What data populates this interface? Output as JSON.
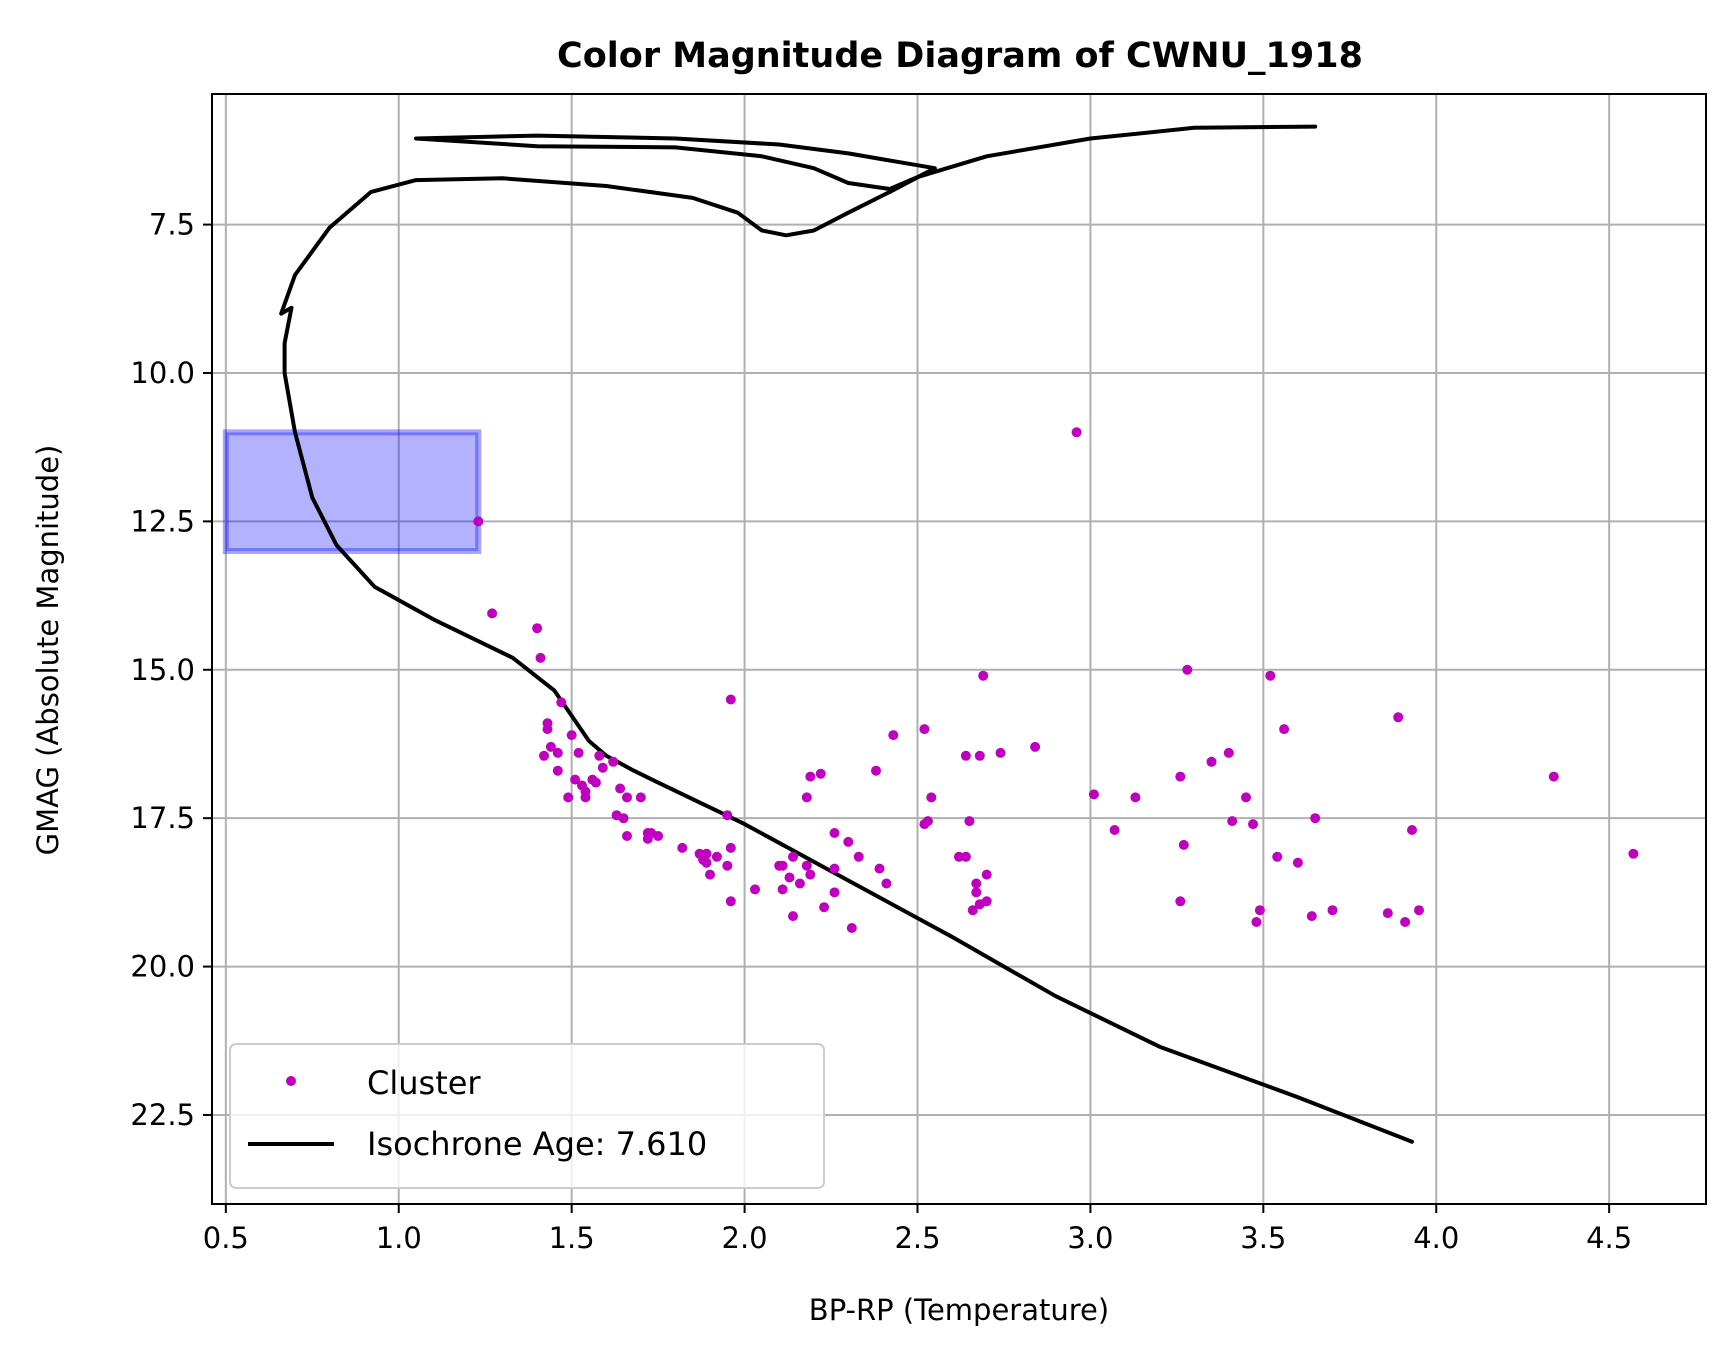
{
  "chart_data": {
    "type": "scatter",
    "title": "Color Magnitude Diagram of CWNU_1918",
    "xlabel": "BP-RP (Temperature)",
    "ylabel": "GMAG (Absolute Magnitude)",
    "xlim": [
      0.46,
      4.78
    ],
    "ylim": [
      24.0,
      5.3
    ],
    "y_inverted": true,
    "grid": true,
    "legend_position": "lower-left",
    "x_ticks": [
      "0.5",
      "1.0",
      "1.5",
      "2.0",
      "2.5",
      "3.0",
      "3.5",
      "4.0",
      "4.5"
    ],
    "y_ticks": [
      "7.5",
      "10.0",
      "12.5",
      "15.0",
      "17.5",
      "20.0",
      "22.5"
    ],
    "colors": {
      "cluster": "#bf00bf",
      "isochrone": "#000000",
      "highlight_fill": "#0000ff",
      "grid": "#b0b0b0"
    },
    "highlight_region": {
      "x": [
        0.5,
        1.23
      ],
      "y": [
        11.0,
        13.0
      ]
    },
    "series": [
      {
        "name": "Cluster",
        "kind": "scatter",
        "points": [
          [
            2.96,
            11.0
          ],
          [
            1.23,
            12.5
          ],
          [
            1.27,
            14.05
          ],
          [
            1.4,
            14.3
          ],
          [
            1.41,
            14.8
          ],
          [
            1.47,
            15.55
          ],
          [
            1.96,
            15.5
          ],
          [
            1.43,
            15.9
          ],
          [
            1.43,
            16.0
          ],
          [
            1.5,
            16.1
          ],
          [
            1.44,
            16.3
          ],
          [
            1.46,
            16.4
          ],
          [
            1.42,
            16.45
          ],
          [
            1.52,
            16.4
          ],
          [
            1.58,
            16.45
          ],
          [
            1.62,
            16.55
          ],
          [
            1.59,
            16.65
          ],
          [
            1.46,
            16.7
          ],
          [
            1.51,
            16.85
          ],
          [
            1.53,
            16.95
          ],
          [
            1.56,
            16.85
          ],
          [
            1.57,
            16.9
          ],
          [
            1.49,
            17.15
          ],
          [
            1.54,
            17.15
          ],
          [
            1.54,
            17.05
          ],
          [
            1.64,
            17.0
          ],
          [
            1.66,
            17.15
          ],
          [
            1.7,
            17.15
          ],
          [
            1.63,
            17.45
          ],
          [
            1.65,
            17.5
          ],
          [
            1.95,
            17.45
          ],
          [
            1.66,
            17.8
          ],
          [
            1.72,
            17.75
          ],
          [
            1.72,
            17.85
          ],
          [
            1.73,
            17.75
          ],
          [
            1.75,
            17.8
          ],
          [
            1.82,
            18.0
          ],
          [
            1.87,
            18.1
          ],
          [
            1.89,
            18.1
          ],
          [
            1.92,
            18.15
          ],
          [
            1.88,
            18.2
          ],
          [
            1.89,
            18.25
          ],
          [
            1.95,
            18.3
          ],
          [
            1.9,
            18.45
          ],
          [
            1.96,
            18.0
          ],
          [
            1.96,
            18.9
          ],
          [
            2.03,
            18.7
          ],
          [
            2.1,
            18.3
          ],
          [
            2.11,
            18.3
          ],
          [
            2.14,
            18.15
          ],
          [
            2.18,
            18.3
          ],
          [
            2.19,
            18.45
          ],
          [
            2.13,
            18.5
          ],
          [
            2.11,
            18.7
          ],
          [
            2.16,
            18.6
          ],
          [
            2.14,
            19.15
          ],
          [
            2.19,
            16.8
          ],
          [
            2.22,
            16.75
          ],
          [
            2.18,
            17.15
          ],
          [
            2.26,
            17.75
          ],
          [
            2.3,
            17.9
          ],
          [
            2.26,
            18.35
          ],
          [
            2.33,
            18.15
          ],
          [
            2.39,
            18.35
          ],
          [
            2.41,
            18.6
          ],
          [
            2.26,
            18.75
          ],
          [
            2.23,
            19.0
          ],
          [
            2.31,
            19.35
          ],
          [
            2.38,
            16.7
          ],
          [
            2.43,
            16.1
          ],
          [
            2.52,
            16.0
          ],
          [
            2.54,
            17.15
          ],
          [
            2.52,
            17.6
          ],
          [
            2.53,
            17.55
          ],
          [
            2.62,
            18.15
          ],
          [
            2.64,
            18.15
          ],
          [
            2.65,
            17.55
          ],
          [
            2.64,
            16.45
          ],
          [
            2.68,
            16.45
          ],
          [
            2.74,
            16.4
          ],
          [
            2.84,
            16.3
          ],
          [
            2.69,
            15.1
          ],
          [
            2.67,
            18.6
          ],
          [
            2.67,
            18.75
          ],
          [
            2.68,
            18.95
          ],
          [
            2.7,
            18.45
          ],
          [
            2.7,
            18.9
          ],
          [
            2.66,
            19.05
          ],
          [
            3.01,
            17.1
          ],
          [
            3.07,
            17.7
          ],
          [
            3.13,
            17.15
          ],
          [
            3.28,
            15.0
          ],
          [
            3.26,
            16.8
          ],
          [
            3.27,
            17.95
          ],
          [
            3.26,
            18.9
          ],
          [
            3.35,
            16.55
          ],
          [
            3.4,
            16.4
          ],
          [
            3.41,
            17.55
          ],
          [
            3.45,
            17.15
          ],
          [
            3.47,
            17.6
          ],
          [
            3.49,
            19.05
          ],
          [
            3.48,
            19.25
          ],
          [
            3.52,
            15.1
          ],
          [
            3.54,
            18.15
          ],
          [
            3.56,
            16.0
          ],
          [
            3.6,
            18.25
          ],
          [
            3.64,
            19.15
          ],
          [
            3.65,
            17.5
          ],
          [
            3.7,
            19.05
          ],
          [
            3.86,
            19.1
          ],
          [
            3.89,
            15.8
          ],
          [
            3.91,
            19.25
          ],
          [
            3.93,
            17.7
          ],
          [
            3.95,
            19.05
          ],
          [
            4.34,
            16.8
          ],
          [
            4.57,
            18.1
          ]
        ]
      },
      {
        "name": "Isochrone Age: 7.610",
        "kind": "line",
        "points": [
          [
            3.93,
            22.95
          ],
          [
            3.6,
            22.2
          ],
          [
            3.2,
            21.35
          ],
          [
            2.9,
            20.5
          ],
          [
            2.6,
            19.5
          ],
          [
            2.3,
            18.55
          ],
          [
            2.0,
            17.6
          ],
          [
            1.75,
            16.9
          ],
          [
            1.68,
            16.7
          ],
          [
            1.6,
            16.45
          ],
          [
            1.55,
            16.2
          ],
          [
            1.45,
            15.35
          ],
          [
            1.33,
            14.8
          ],
          [
            1.1,
            14.15
          ],
          [
            0.93,
            13.6
          ],
          [
            0.82,
            12.9
          ],
          [
            0.75,
            12.1
          ],
          [
            0.7,
            11.0
          ],
          [
            0.67,
            10.0
          ],
          [
            0.67,
            9.5
          ],
          [
            0.69,
            8.9
          ],
          [
            0.66,
            9.0
          ],
          [
            0.7,
            8.35
          ],
          [
            0.8,
            7.55
          ],
          [
            0.92,
            6.95
          ],
          [
            1.05,
            6.75
          ],
          [
            1.3,
            6.72
          ],
          [
            1.6,
            6.85
          ],
          [
            1.85,
            7.05
          ],
          [
            1.98,
            7.3
          ],
          [
            2.05,
            7.6
          ],
          [
            2.12,
            7.68
          ],
          [
            2.2,
            7.6
          ],
          [
            2.3,
            7.3
          ],
          [
            2.42,
            6.95
          ],
          [
            2.55,
            6.55
          ],
          [
            2.3,
            6.3
          ],
          [
            2.1,
            6.15
          ],
          [
            1.8,
            6.05
          ],
          [
            1.4,
            6.0
          ],
          [
            1.05,
            6.05
          ],
          [
            1.4,
            6.18
          ],
          [
            1.8,
            6.2
          ],
          [
            2.05,
            6.35
          ],
          [
            2.2,
            6.55
          ],
          [
            2.3,
            6.8
          ],
          [
            2.42,
            6.9
          ],
          [
            2.5,
            6.7
          ],
          [
            2.7,
            6.35
          ],
          [
            3.0,
            6.05
          ],
          [
            3.3,
            5.87
          ],
          [
            3.65,
            5.85
          ]
        ]
      }
    ]
  }
}
